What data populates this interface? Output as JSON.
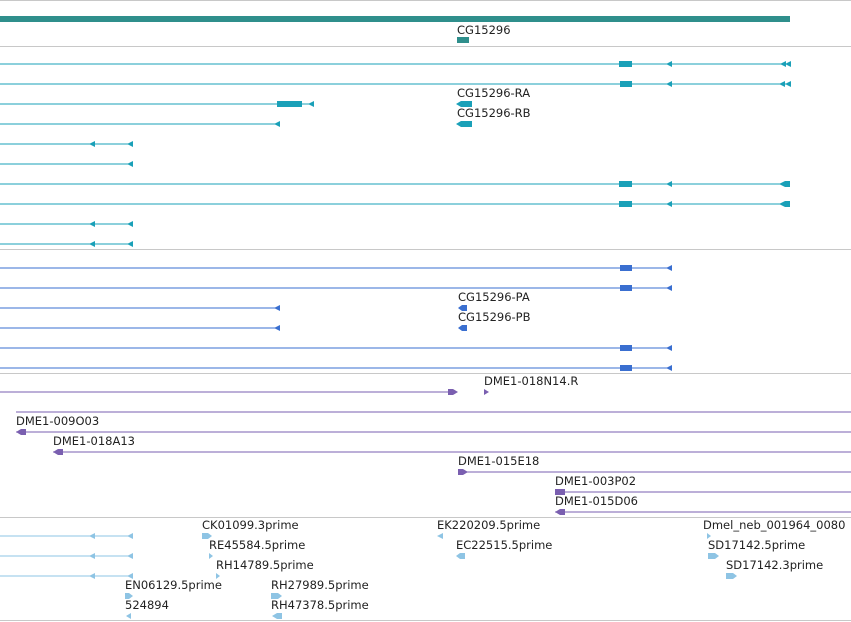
{
  "colors": {
    "background": "#ffffff",
    "separator": "#c8c8c8",
    "gene": "#2f8f8c",
    "transcript": "#1aa0b8",
    "protein": "#3a6fd0",
    "clone": "#7a5fb0",
    "est": "#8ec4e4",
    "label": "#222222"
  },
  "tracks": {
    "gene": {
      "labels": {
        "g1": "CG15296"
      }
    },
    "transcripts": {
      "labels": {
        "t1": "CG15296-RA",
        "t2": "CG15296-RB"
      },
      "glyphs": [
        "arrowhead-left",
        "arrowhead-right",
        "exon-block"
      ]
    },
    "proteins": {
      "labels": {
        "p1": "CG15296-PA",
        "p2": "CG15296-PB"
      }
    },
    "clones": {
      "labels": {
        "c1": "DME1-018N14.R",
        "c2": "DME1-009O03",
        "c3": "DME1-018A13",
        "c4": "DME1-015E18",
        "c5": "DME1-003P02",
        "c6": "DME1-015D06"
      }
    },
    "ests": {
      "labels": {
        "e1": "CK01099.3prime",
        "e2": "RE45584.5prime",
        "e3": "RH14789.5prime",
        "e4": "EN06129.5prime",
        "e5": "524894",
        "e6": "RH27989.5prime",
        "e7": "RH47378.5prime",
        "e8": "EK220209.5prime",
        "e9": "EC22515.5prime",
        "e10": "Dmel_neb_001964_0080",
        "e11": "SD17142.5prime",
        "e12": "SD17142.3prime"
      }
    }
  }
}
